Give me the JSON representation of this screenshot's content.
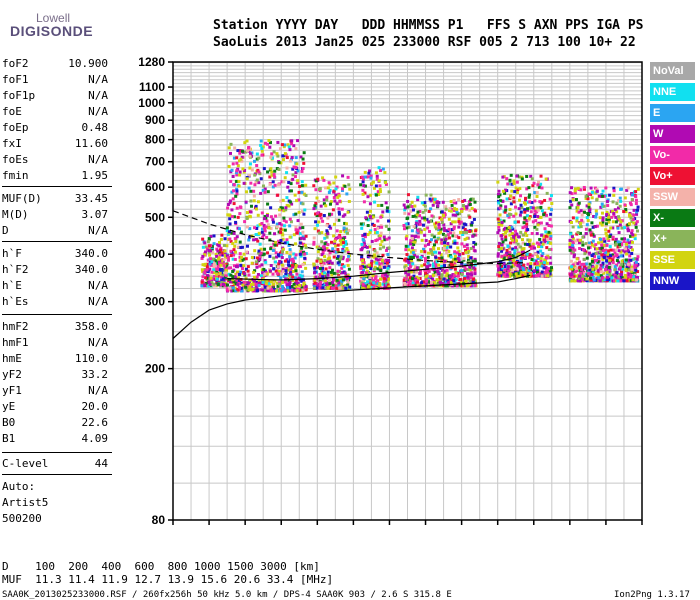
{
  "logo": {
    "line1": "Lowell",
    "line2": "DIGISONDE"
  },
  "header": {
    "row1": "Station YYYY DAY   DDD HHMMSS P1   FFS S AXN PPS IGA PS",
    "row2": "SaoLuis 2013 Jan25 025 233000 RSF 005 2 713 100 10+ 22"
  },
  "params": [
    {
      "label": "foF2",
      "value": "10.900"
    },
    {
      "label": "foF1",
      "value": "N/A"
    },
    {
      "label": "foF1p",
      "value": "N/A"
    },
    {
      "label": "foE",
      "value": "N/A"
    },
    {
      "label": "foEp",
      "value": "0.48"
    },
    {
      "label": "fxI",
      "value": "11.60"
    },
    {
      "label": "foEs",
      "value": "N/A"
    },
    {
      "label": "fmin",
      "value": "1.95"
    },
    {
      "label": "MUF(D)",
      "value": "33.45"
    },
    {
      "label": "M(D)",
      "value": "3.07"
    },
    {
      "label": "D",
      "value": "N/A"
    },
    {
      "label": "h`F",
      "value": "340.0"
    },
    {
      "label": "h`F2",
      "value": "340.0"
    },
    {
      "label": "h`E",
      "value": "N/A"
    },
    {
      "label": "h`Es",
      "value": "N/A"
    },
    {
      "label": "hmF2",
      "value": "358.0"
    },
    {
      "label": "hmF1",
      "value": "N/A"
    },
    {
      "label": "hmE",
      "value": "110.0"
    },
    {
      "label": "yF2",
      "value": "33.2"
    },
    {
      "label": "yF1",
      "value": "N/A"
    },
    {
      "label": "yE",
      "value": "20.0"
    },
    {
      "label": "B0",
      "value": "22.6"
    },
    {
      "label": "B1",
      "value": "4.09"
    },
    {
      "label": "C-level",
      "value": "44"
    }
  ],
  "autoscale": {
    "line1": "Auto:",
    "line2": "Artist5",
    "line3": "500200"
  },
  "muf_table": {
    "row1": "D    100  200  400  600  800 1000 1500 3000 [km]",
    "row2": "MUF  11.3 11.4 11.9 12.7 13.9 15.6 20.6 33.4 [MHz]"
  },
  "footer": {
    "left": "SAA0K_2013025233000.RSF / 260fx256h 50 kHz 5.0 km / DPS-4 SAA0K 903 / 2.6 S 315.8 E",
    "right": "Ion2Png 1.3.17"
  },
  "legend": [
    {
      "label": "NoVal",
      "color": "#a8a8a8"
    },
    {
      "label": "NNE",
      "color": "#11e0f0"
    },
    {
      "label": "E",
      "color": "#2ba5f2"
    },
    {
      "label": "W",
      "color": "#b00ab3"
    },
    {
      "label": "Vo-",
      "color": "#f22aa8"
    },
    {
      "label": "Vo+",
      "color": "#ee1133"
    },
    {
      "label": "SSW",
      "color": "#f4b2aa"
    },
    {
      "label": "X-",
      "color": "#0a7a14"
    },
    {
      "label": "X+",
      "color": "#8ab45a"
    },
    {
      "label": "SSE",
      "color": "#d2d410"
    },
    {
      "label": "NNW",
      "color": "#1a15c8"
    }
  ],
  "chart_data": {
    "type": "scatter",
    "xlim": [
      1,
      14
    ],
    "ylim": [
      80,
      1280
    ],
    "y_log_scale": true,
    "xticks": [
      1,
      2,
      3,
      4,
      5,
      6,
      7,
      8,
      9,
      10,
      11,
      12,
      13,
      14
    ],
    "yticks": [
      80,
      200,
      300,
      400,
      500,
      600,
      700,
      800,
      900,
      1000,
      1100,
      1280
    ],
    "grid": true,
    "legend_placement": "right",
    "echo_clusters": [
      {
        "x": [
          1.8,
          2.5
        ],
        "y": [
          330,
          450
        ]
      },
      {
        "x": [
          2.5,
          4.7
        ],
        "y": [
          320,
          800
        ]
      },
      {
        "x": [
          4.9,
          5.9
        ],
        "y": [
          325,
          650
        ]
      },
      {
        "x": [
          6.2,
          7.0
        ],
        "y": [
          325,
          680
        ]
      },
      {
        "x": [
          7.4,
          8.3
        ],
        "y": [
          330,
          580
        ]
      },
      {
        "x": [
          8.3,
          9.4
        ],
        "y": [
          330,
          560
        ]
      },
      {
        "x": [
          10.0,
          11.5
        ],
        "y": [
          350,
          650
        ]
      },
      {
        "x": [
          12.0,
          13.9
        ],
        "y": [
          340,
          600
        ]
      }
    ],
    "series": [
      {
        "values": [
          [
            1.0,
            240
          ],
          [
            1.5,
            265
          ],
          [
            2.0,
            285
          ],
          [
            2.5,
            296
          ],
          [
            3.0,
            303
          ],
          [
            4.0,
            311
          ],
          [
            5.0,
            317
          ],
          [
            6.0,
            322
          ],
          [
            7.0,
            326
          ],
          [
            8.0,
            330
          ],
          [
            9.0,
            334
          ],
          [
            10.0,
            338
          ],
          [
            10.5,
            345
          ],
          [
            10.9,
            352
          ]
        ]
      },
      {
        "values": [
          [
            1.0,
            520
          ],
          [
            2.0,
            480
          ],
          [
            3.0,
            450
          ],
          [
            4.0,
            428
          ],
          [
            5.0,
            412
          ],
          [
            6.0,
            400
          ],
          [
            7.0,
            392
          ],
          [
            8.0,
            385
          ],
          [
            9.0,
            380
          ],
          [
            10.0,
            378
          ],
          [
            10.8,
            380
          ]
        ]
      },
      {
        "values": [
          [
            2.5,
            345
          ],
          [
            4.0,
            342
          ],
          [
            5.0,
            345
          ],
          [
            6.0,
            350
          ],
          [
            7.0,
            358
          ],
          [
            8.0,
            365
          ],
          [
            9.0,
            372
          ],
          [
            10.0,
            382
          ],
          [
            10.5,
            392
          ],
          [
            10.9,
            410
          ]
        ]
      }
    ]
  }
}
